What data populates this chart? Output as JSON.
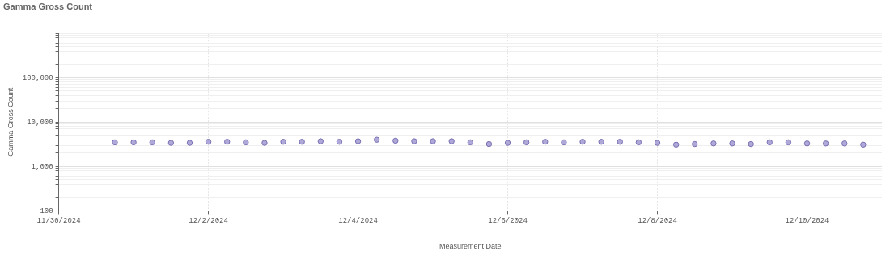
{
  "chart_data": {
    "type": "scatter",
    "title": "Gamma Gross Count",
    "xlabel": "Measurement Date",
    "ylabel": "Gamma Gross Count",
    "x": [
      "2024-11-30T18:00",
      "2024-12-01T00:00",
      "2024-12-01T06:00",
      "2024-12-01T12:00",
      "2024-12-01T18:00",
      "2024-12-02T00:00",
      "2024-12-02T06:00",
      "2024-12-02T12:00",
      "2024-12-02T18:00",
      "2024-12-03T00:00",
      "2024-12-03T06:00",
      "2024-12-03T12:00",
      "2024-12-03T18:00",
      "2024-12-04T00:00",
      "2024-12-04T06:00",
      "2024-12-04T12:00",
      "2024-12-04T18:00",
      "2024-12-05T00:00",
      "2024-12-05T06:00",
      "2024-12-05T12:00",
      "2024-12-05T18:00",
      "2024-12-06T00:00",
      "2024-12-06T06:00",
      "2024-12-06T12:00",
      "2024-12-06T18:00",
      "2024-12-07T00:00",
      "2024-12-07T06:00",
      "2024-12-07T12:00",
      "2024-12-07T18:00",
      "2024-12-08T00:00",
      "2024-12-08T06:00",
      "2024-12-08T12:00",
      "2024-12-08T18:00",
      "2024-12-09T00:00",
      "2024-12-09T06:00",
      "2024-12-09T12:00",
      "2024-12-09T18:00",
      "2024-12-10T00:00",
      "2024-12-10T06:00",
      "2024-12-10T12:00",
      "2024-12-10T18:00"
    ],
    "series": [
      {
        "color": "#9b93cf",
        "values": [
          3500,
          3500,
          3500,
          3400,
          3400,
          3600,
          3600,
          3500,
          3400,
          3600,
          3600,
          3700,
          3600,
          3700,
          4000,
          3800,
          3700,
          3700,
          3700,
          3500,
          3200,
          3400,
          3500,
          3600,
          3500,
          3600,
          3600,
          3600,
          3500,
          3400,
          3100,
          3200,
          3300,
          3300,
          3200,
          3500,
          3500,
          3300,
          3300,
          3300,
          3100
        ]
      }
    ],
    "marker": "circle",
    "log": "y",
    "grid": true,
    "legend": false,
    "xlim": [
      "2024-11-30",
      "2024-12-11"
    ],
    "xticks": [
      {
        "value": "2024-11-30",
        "label": "11/30/2024"
      },
      {
        "value": "2024-12-02",
        "label": "12/2/2024"
      },
      {
        "value": "2024-12-04",
        "label": "12/4/2024"
      },
      {
        "value": "2024-12-06",
        "label": "12/6/2024"
      },
      {
        "value": "2024-12-08",
        "label": "12/8/2024"
      },
      {
        "value": "2024-12-10",
        "label": "12/10/2024"
      }
    ],
    "ylim": [
      100,
      1000000
    ],
    "yticks": [
      {
        "value": 100,
        "label": "100"
      },
      {
        "value": 200,
        "label": null
      },
      {
        "value": 300,
        "label": null
      },
      {
        "value": 400,
        "label": null
      },
      {
        "value": 500,
        "label": null
      },
      {
        "value": 600,
        "label": null
      },
      {
        "value": 700,
        "label": null
      },
      {
        "value": 800,
        "label": null
      },
      {
        "value": 900,
        "label": null
      },
      {
        "value": 1000,
        "label": "1,000"
      },
      {
        "value": 2000,
        "label": null
      },
      {
        "value": 3000,
        "label": null
      },
      {
        "value": 4000,
        "label": null
      },
      {
        "value": 5000,
        "label": null
      },
      {
        "value": 6000,
        "label": null
      },
      {
        "value": 7000,
        "label": null
      },
      {
        "value": 8000,
        "label": null
      },
      {
        "value": 9000,
        "label": null
      },
      {
        "value": 10000,
        "label": "10,000"
      },
      {
        "value": 20000,
        "label": null
      },
      {
        "value": 30000,
        "label": null
      },
      {
        "value": 40000,
        "label": null
      },
      {
        "value": 50000,
        "label": null
      },
      {
        "value": 60000,
        "label": null
      },
      {
        "value": 70000,
        "label": null
      },
      {
        "value": 80000,
        "label": null
      },
      {
        "value": 90000,
        "label": null
      },
      {
        "value": 100000,
        "label": "100,000"
      },
      {
        "value": 200000,
        "label": null
      },
      {
        "value": 300000,
        "label": null
      },
      {
        "value": 400000,
        "label": null
      },
      {
        "value": 500000,
        "label": null
      },
      {
        "value": 600000,
        "label": null
      },
      {
        "value": 700000,
        "label": null
      },
      {
        "value": 800000,
        "label": null
      },
      {
        "value": 900000,
        "label": null
      },
      {
        "value": 1000000,
        "label": null
      }
    ]
  }
}
